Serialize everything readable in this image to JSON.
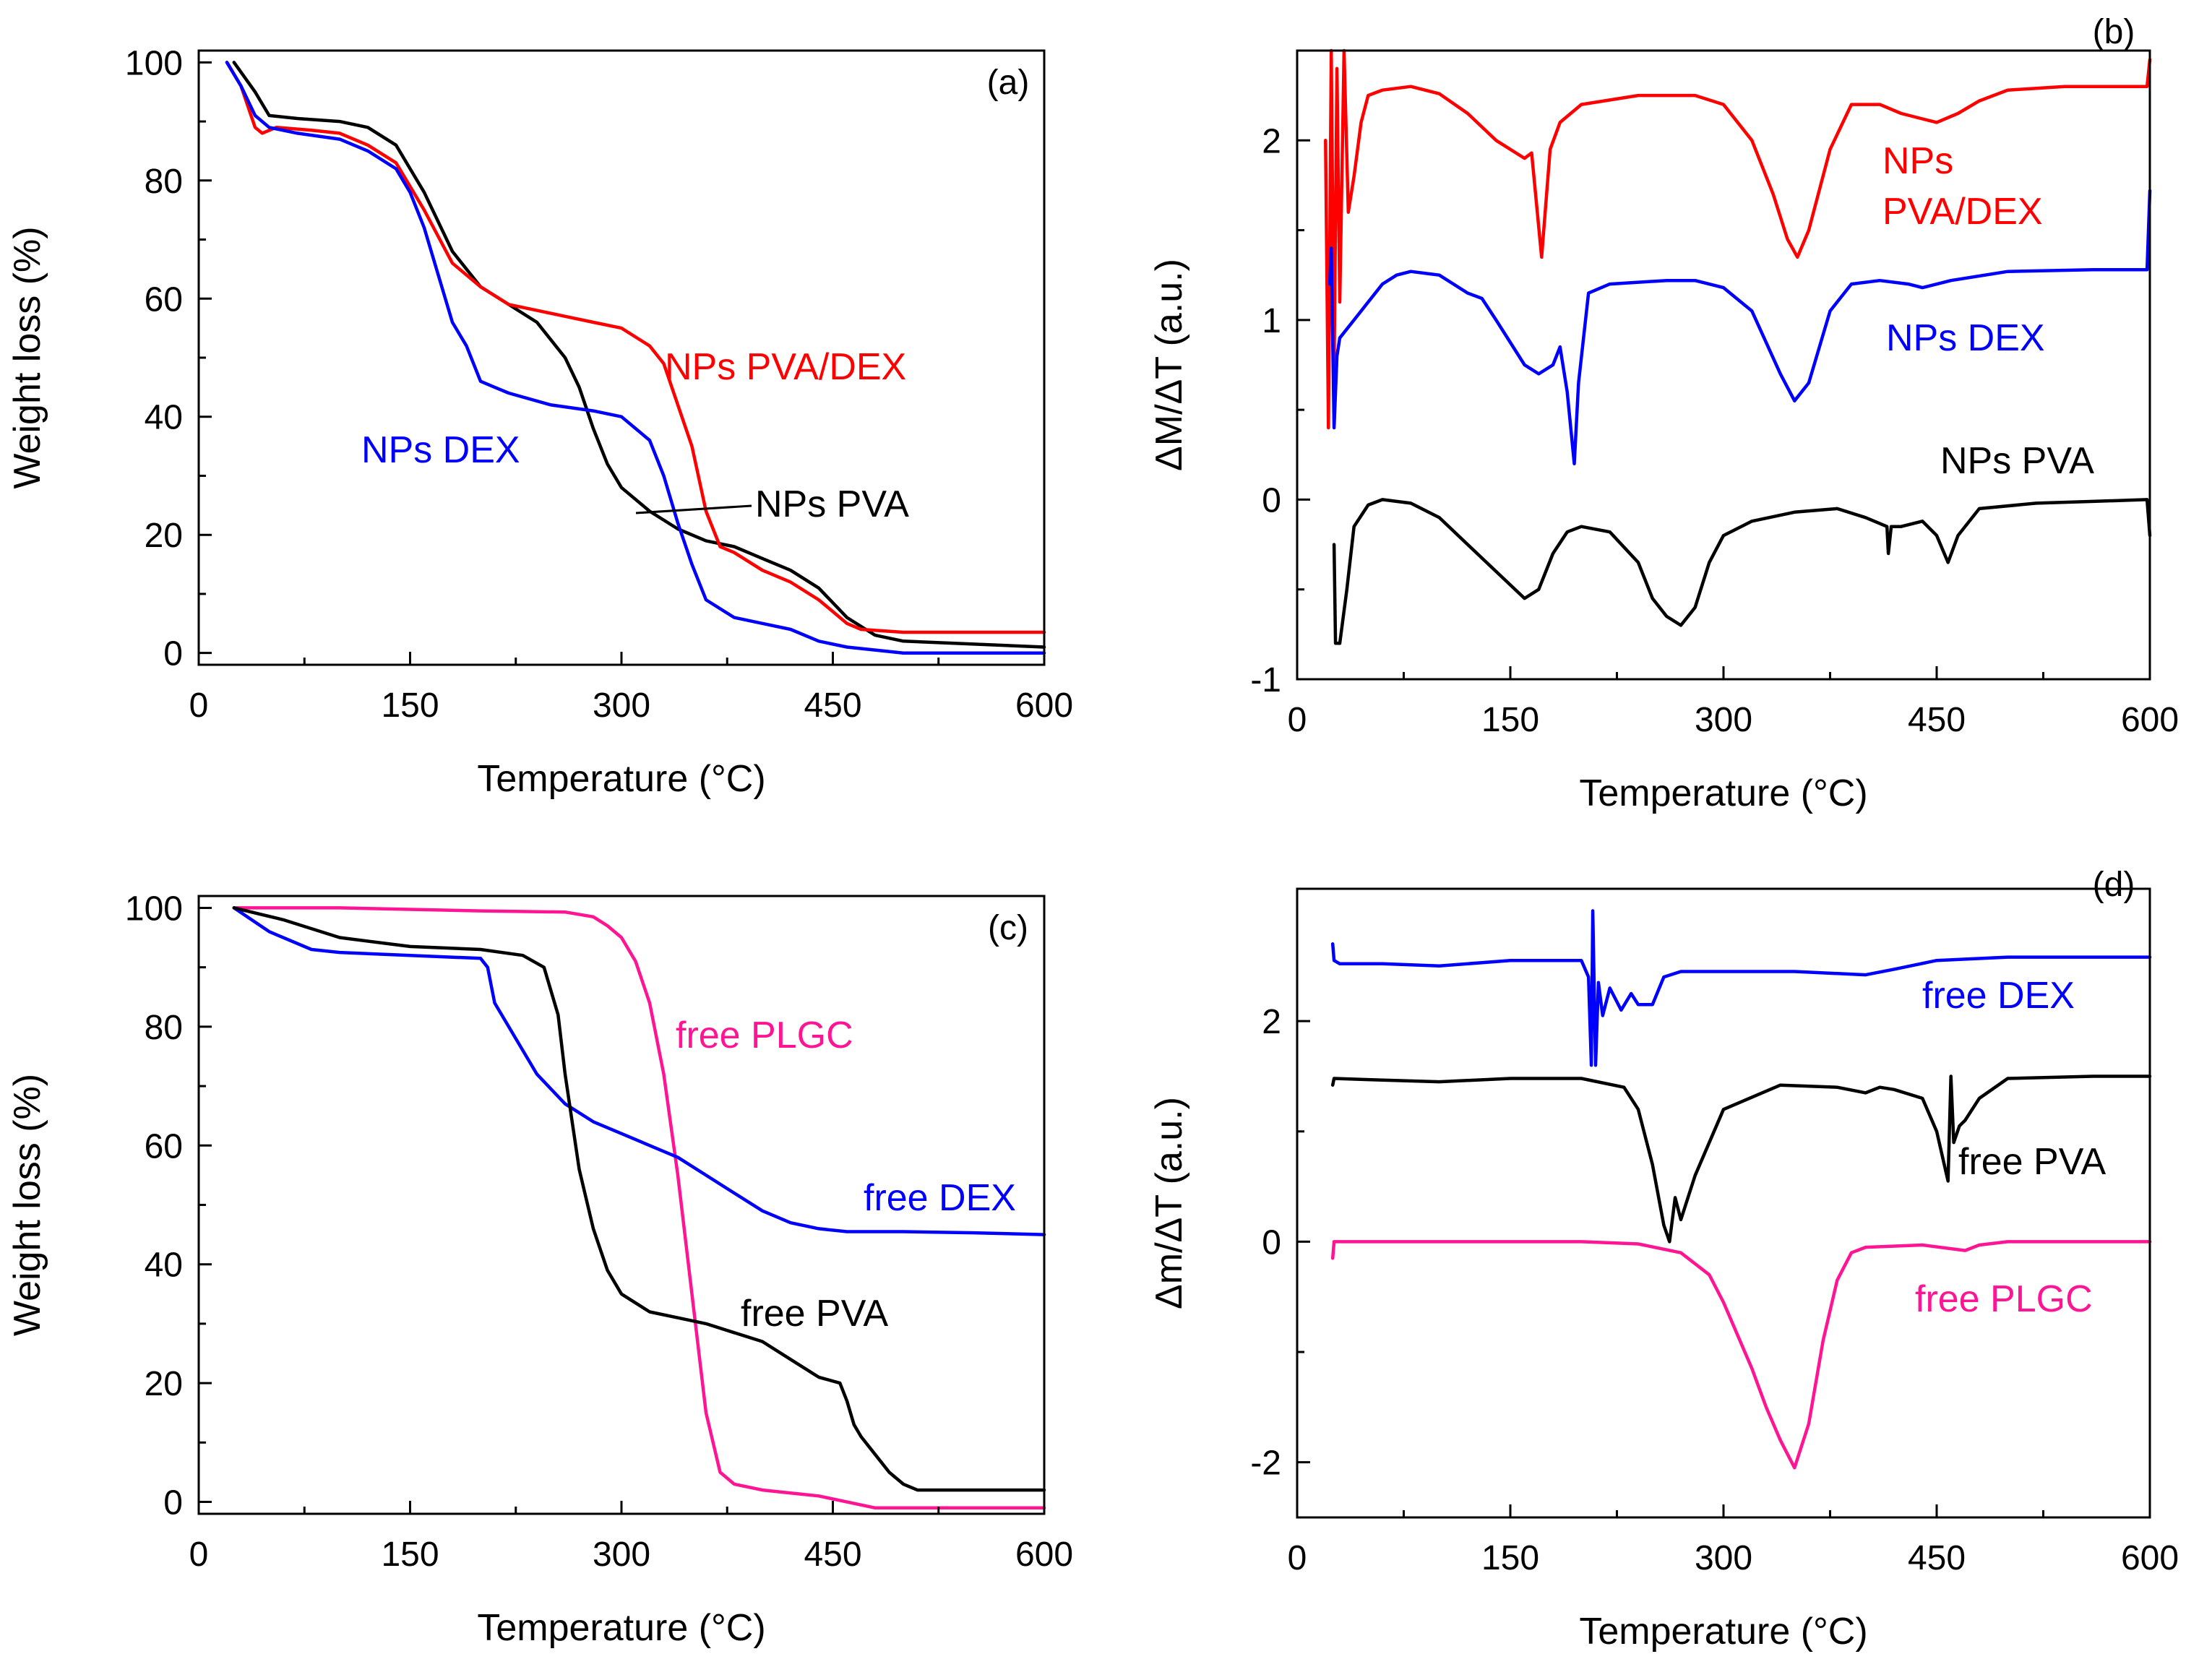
{
  "chart_data": [
    {
      "type": "line",
      "panel": "(a)",
      "xlabel": "Temperature (°C)",
      "ylabel": "Weight loss (%)",
      "xlim": [
        0,
        600
      ],
      "ylim": [
        -2,
        102
      ],
      "xticks": [
        0,
        150,
        300,
        450,
        600
      ],
      "yticks": [
        0,
        20,
        40,
        60,
        80,
        100
      ],
      "series": [
        {
          "name": "NPs PVA",
          "color": "#000000",
          "x": [
            25,
            40,
            50,
            70,
            100,
            120,
            140,
            160,
            180,
            200,
            220,
            240,
            260,
            270,
            280,
            290,
            300,
            320,
            340,
            360,
            380,
            400,
            420,
            440,
            460,
            480,
            500,
            550,
            600
          ],
          "y": [
            100,
            95,
            91,
            90.5,
            90,
            89,
            86,
            78,
            68,
            62,
            59,
            56,
            50,
            45,
            38,
            32,
            28,
            24,
            21,
            19,
            18,
            16,
            14,
            11,
            6,
            3,
            2,
            1.5,
            1
          ]
        },
        {
          "name": "NPs PVA/DEX",
          "color": "#ff0000",
          "x": [
            20,
            30,
            40,
            45,
            55,
            80,
            100,
            120,
            140,
            160,
            180,
            200,
            220,
            240,
            260,
            280,
            300,
            320,
            330,
            340,
            350,
            360,
            370,
            380,
            400,
            420,
            440,
            460,
            470,
            500,
            550,
            600
          ],
          "y": [
            100,
            96,
            89,
            88,
            89,
            88.5,
            88,
            86,
            83,
            75,
            66,
            62,
            59,
            58,
            57,
            56,
            55,
            52,
            49,
            42,
            35,
            24,
            18,
            17,
            14,
            12,
            9,
            5,
            4,
            3.5,
            3.5,
            3.5
          ]
        },
        {
          "name": "NPs DEX",
          "color": "#0000ff",
          "x": [
            20,
            30,
            40,
            50,
            70,
            100,
            120,
            140,
            150,
            160,
            170,
            180,
            190,
            200,
            210,
            220,
            250,
            280,
            300,
            320,
            330,
            340,
            350,
            360,
            380,
            400,
            420,
            440,
            460,
            500,
            550,
            600
          ],
          "y": [
            100,
            96,
            91,
            89,
            88,
            87,
            85,
            82,
            78,
            72,
            64,
            56,
            52,
            46,
            45,
            44,
            42,
            41,
            40,
            36,
            30,
            22,
            15,
            9,
            6,
            5,
            4,
            2,
            1,
            0,
            0,
            0
          ]
        }
      ],
      "labels": {
        "pva": "NPs PVA",
        "pvadex": "NPs PVA/DEX",
        "dex": "NPs DEX"
      }
    },
    {
      "type": "line",
      "panel": "(b)",
      "xlabel": "Temperature (°C)",
      "ylabel": "ΔM/ΔT (a.u.)",
      "xlim": [
        0,
        600
      ],
      "ylim": [
        -1,
        2.5
      ],
      "xticks": [
        0,
        150,
        300,
        450,
        600
      ],
      "yticks": [
        -1,
        0,
        1,
        2
      ],
      "series": [
        {
          "name": "NPs PVA/DEX",
          "color": "#ff0000",
          "x": [
            20,
            22,
            24,
            26,
            28,
            30,
            33,
            36,
            40,
            45,
            50,
            60,
            80,
            100,
            120,
            140,
            160,
            165,
            172,
            178,
            185,
            200,
            240,
            280,
            300,
            320,
            335,
            345,
            352,
            360,
            375,
            390,
            410,
            425,
            440,
            450,
            465,
            480,
            500,
            540,
            580,
            598,
            600
          ],
          "y": [
            2.0,
            0.4,
            2.5,
            0.7,
            2.4,
            1.1,
            2.5,
            1.6,
            1.8,
            2.1,
            2.25,
            2.28,
            2.3,
            2.26,
            2.15,
            2.0,
            1.9,
            1.93,
            1.35,
            1.95,
            2.1,
            2.2,
            2.25,
            2.25,
            2.2,
            2.0,
            1.7,
            1.45,
            1.35,
            1.5,
            1.95,
            2.2,
            2.2,
            2.15,
            2.12,
            2.1,
            2.15,
            2.22,
            2.28,
            2.3,
            2.3,
            2.3,
            2.45
          ]
        },
        {
          "name": "NPs DEX",
          "color": "#0000ff",
          "x": [
            23,
            24,
            26,
            28,
            30,
            35,
            40,
            50,
            60,
            70,
            80,
            100,
            120,
            130,
            140,
            160,
            170,
            180,
            185,
            190,
            195,
            198,
            205,
            220,
            260,
            280,
            300,
            320,
            340,
            350,
            360,
            375,
            390,
            410,
            430,
            440,
            460,
            500,
            560,
            598,
            600
          ],
          "y": [
            1.2,
            1.4,
            0.4,
            0.8,
            0.9,
            0.95,
            1.0,
            1.1,
            1.2,
            1.25,
            1.27,
            1.25,
            1.15,
            1.12,
            1.0,
            0.75,
            0.7,
            0.75,
            0.85,
            0.6,
            0.2,
            0.65,
            1.15,
            1.2,
            1.22,
            1.22,
            1.18,
            1.05,
            0.7,
            0.55,
            0.65,
            1.05,
            1.2,
            1.22,
            1.2,
            1.18,
            1.22,
            1.27,
            1.28,
            1.28,
            1.72
          ]
        },
        {
          "name": "NPs PVA",
          "color": "#000000",
          "x": [
            26,
            27,
            30,
            35,
            40,
            50,
            60,
            80,
            100,
            120,
            140,
            160,
            170,
            180,
            190,
            200,
            220,
            240,
            250,
            260,
            270,
            280,
            290,
            300,
            320,
            350,
            380,
            400,
            415,
            416,
            418,
            425,
            440,
            450,
            458,
            465,
            480,
            520,
            560,
            598,
            600
          ],
          "y": [
            -0.25,
            -0.8,
            -0.8,
            -0.5,
            -0.15,
            -0.03,
            0,
            -0.02,
            -0.1,
            -0.25,
            -0.4,
            -0.55,
            -0.5,
            -0.3,
            -0.18,
            -0.15,
            -0.18,
            -0.35,
            -0.55,
            -0.65,
            -0.7,
            -0.6,
            -0.35,
            -0.2,
            -0.12,
            -0.07,
            -0.05,
            -0.1,
            -0.15,
            -0.3,
            -0.15,
            -0.15,
            -0.12,
            -0.2,
            -0.35,
            -0.2,
            -0.05,
            -0.02,
            -0.01,
            0,
            -0.2
          ]
        }
      ],
      "labels": {
        "pvadex_line1": "NPs",
        "pvadex_line2": "PVA/DEX",
        "dex": "NPs DEX",
        "pva": "NPs PVA"
      }
    },
    {
      "type": "line",
      "panel": "(c)",
      "xlabel": "Temperature (°C)",
      "ylabel": "Weight loss (%)",
      "xlim": [
        0,
        600
      ],
      "ylim": [
        -2,
        102
      ],
      "xticks": [
        0,
        150,
        300,
        450,
        600
      ],
      "yticks": [
        0,
        20,
        40,
        60,
        80,
        100
      ],
      "series": [
        {
          "name": "free PLGC",
          "color": "#ff1493",
          "x": [
            25,
            100,
            200,
            260,
            280,
            290,
            300,
            310,
            320,
            330,
            340,
            350,
            360,
            370,
            380,
            400,
            420,
            440,
            460,
            480,
            500,
            550,
            600
          ],
          "y": [
            100,
            100,
            99.5,
            99.3,
            98.5,
            97,
            95,
            91,
            84,
            72,
            55,
            35,
            15,
            5,
            3,
            2,
            1.5,
            1,
            0,
            -1,
            -1,
            -1,
            -1
          ]
        },
        {
          "name": "free DEX",
          "color": "#0000ff",
          "x": [
            25,
            50,
            80,
            100,
            150,
            200,
            205,
            210,
            220,
            240,
            260,
            280,
            300,
            320,
            340,
            360,
            380,
            400,
            420,
            440,
            460,
            500,
            550,
            600
          ],
          "y": [
            100,
            96,
            93,
            92.5,
            92,
            91.5,
            90,
            84,
            80,
            72,
            67,
            64,
            62,
            60,
            58,
            55,
            52,
            49,
            47,
            46,
            45.5,
            45.5,
            45.3,
            45
          ]
        },
        {
          "name": "free PVA",
          "color": "#000000",
          "x": [
            25,
            60,
            100,
            150,
            200,
            230,
            245,
            255,
            260,
            270,
            280,
            290,
            300,
            320,
            340,
            360,
            380,
            400,
            420,
            440,
            455,
            460,
            465,
            470,
            480,
            490,
            500,
            510,
            550,
            600
          ],
          "y": [
            100,
            98,
            95,
            93.5,
            93,
            92,
            90,
            82,
            72,
            56,
            46,
            39,
            35,
            32,
            31,
            30,
            28.5,
            27,
            24,
            21,
            20,
            17,
            13,
            11,
            8,
            5,
            3,
            2,
            2,
            2
          ]
        }
      ],
      "labels": {
        "plgc": "free PLGC",
        "dex": "free DEX",
        "pva": "free PVA"
      }
    },
    {
      "type": "line",
      "panel": "(d)",
      "xlabel": "Temperature (°C)",
      "ylabel": "Δm/ΔT (a.u.)",
      "xlim": [
        0,
        600
      ],
      "ylim": [
        -2.5,
        3.2
      ],
      "xticks": [
        0,
        150,
        300,
        450,
        600
      ],
      "yticks": [
        -2,
        0,
        2
      ],
      "series": [
        {
          "name": "free DEX",
          "color": "#0000ff",
          "x": [
            25,
            26,
            30,
            60,
            100,
            150,
            200,
            205,
            207,
            208,
            210,
            212,
            215,
            220,
            228,
            235,
            240,
            250,
            258,
            270,
            300,
            350,
            400,
            420,
            450,
            500,
            600
          ],
          "y": [
            2.7,
            2.55,
            2.52,
            2.52,
            2.5,
            2.55,
            2.55,
            2.4,
            1.6,
            3.0,
            1.6,
            2.35,
            2.05,
            2.3,
            2.1,
            2.25,
            2.15,
            2.15,
            2.4,
            2.45,
            2.45,
            2.45,
            2.42,
            2.47,
            2.55,
            2.58,
            2.58
          ]
        },
        {
          "name": "free PVA",
          "color": "#000000",
          "x": [
            25,
            26,
            50,
            100,
            150,
            200,
            230,
            240,
            250,
            258,
            262,
            266,
            270,
            280,
            300,
            340,
            380,
            400,
            410,
            420,
            440,
            450,
            458,
            460,
            462,
            466,
            470,
            480,
            500,
            560,
            600
          ],
          "y": [
            1.42,
            1.48,
            1.47,
            1.45,
            1.48,
            1.48,
            1.4,
            1.2,
            0.7,
            0.15,
            0.0,
            0.4,
            0.2,
            0.6,
            1.2,
            1.42,
            1.4,
            1.35,
            1.4,
            1.38,
            1.3,
            1.0,
            0.55,
            1.5,
            0.9,
            1.05,
            1.1,
            1.3,
            1.48,
            1.5,
            1.5
          ]
        },
        {
          "name": "free PLGC",
          "color": "#ff1493",
          "x": [
            25,
            26,
            40,
            100,
            150,
            200,
            240,
            270,
            290,
            300,
            310,
            320,
            330,
            340,
            350,
            360,
            370,
            380,
            390,
            400,
            440,
            470,
            480,
            500,
            600
          ],
          "y": [
            -0.15,
            0.0,
            0.0,
            0.0,
            0.0,
            0.0,
            -0.02,
            -0.1,
            -0.3,
            -0.55,
            -0.85,
            -1.15,
            -1.5,
            -1.8,
            -2.05,
            -1.65,
            -0.9,
            -0.35,
            -0.1,
            -0.05,
            -0.03,
            -0.08,
            -0.03,
            0.0,
            0.0
          ]
        }
      ],
      "labels": {
        "dex": "free DEX",
        "pva": "free PVA",
        "plgc": "free PLGC"
      }
    }
  ]
}
